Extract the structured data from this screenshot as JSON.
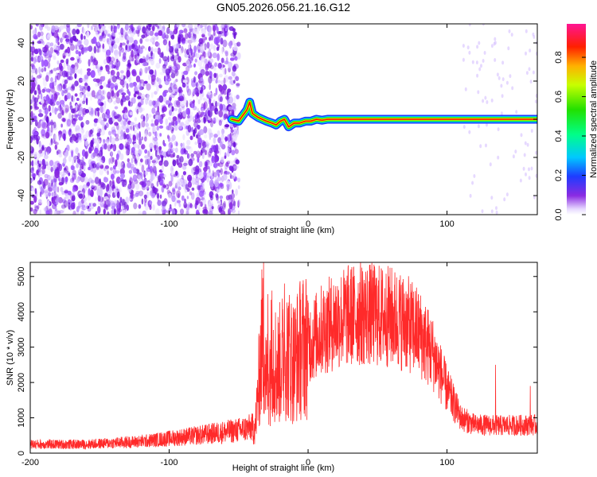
{
  "title": "GN05.2026.056.21.16.G12",
  "chart_data": [
    {
      "type": "heatmap",
      "xlabel": "Height of straight line (km)",
      "ylabel": "Frequency (Hz)",
      "xlim": [
        -200,
        165
      ],
      "ylim": [
        -50,
        50
      ],
      "x_ticks": [
        -200,
        -100,
        0,
        100
      ],
      "x_tick_labels": [
        "-200",
        "-100",
        "0",
        "100"
      ],
      "y_ticks": [
        -40,
        -20,
        0,
        20,
        40
      ],
      "y_tick_labels": [
        "-40",
        "-20",
        "0",
        "20",
        "40"
      ],
      "colorbar": {
        "label": "Normalized spectral amplitude",
        "range": [
          0,
          0.97
        ],
        "ticks": [
          0.0,
          0.2,
          0.4,
          0.6,
          0.8
        ],
        "tick_labels": [
          "0.0",
          "0.2",
          "0.4",
          "0.6",
          "0.8"
        ]
      },
      "noise_region_x": [
        -200,
        -52
      ],
      "signal_start_x": -55,
      "trace": [
        [
          -55,
          0
        ],
        [
          -50,
          -1
        ],
        [
          -47,
          2
        ],
        [
          -44,
          5
        ],
        [
          -42,
          9
        ],
        [
          -40,
          3
        ],
        [
          -36,
          1
        ],
        [
          -33,
          0
        ],
        [
          -30,
          -1
        ],
        [
          -26,
          -2
        ],
        [
          -23,
          -3
        ],
        [
          -20,
          -1
        ],
        [
          -17,
          0
        ],
        [
          -14,
          -4
        ],
        [
          -12,
          -3
        ],
        [
          -10,
          -2
        ],
        [
          -6,
          -2
        ],
        [
          -2,
          -1
        ],
        [
          2,
          -1
        ],
        [
          6,
          0
        ],
        [
          10,
          -0.5
        ],
        [
          14,
          0
        ],
        [
          20,
          0
        ],
        [
          40,
          0
        ],
        [
          60,
          0
        ],
        [
          80,
          0
        ],
        [
          100,
          0
        ],
        [
          120,
          0
        ],
        [
          140,
          0
        ],
        [
          165,
          0
        ]
      ]
    },
    {
      "type": "line",
      "xlabel": "Height of straight line (km)",
      "ylabel": "SNR (10 * v/v)",
      "xlim": [
        -200,
        165
      ],
      "ylim": [
        0,
        5400
      ],
      "x_ticks": [
        -200,
        -100,
        0,
        100
      ],
      "x_tick_labels": [
        "-200",
        "-100",
        "0",
        "100"
      ],
      "y_ticks": [
        0,
        1000,
        2000,
        3000,
        4000,
        5000
      ],
      "y_tick_labels": [
        "0",
        "1000",
        "2000",
        "3000",
        "4000",
        "5000"
      ],
      "series_color": "#ff2a2a",
      "envelope": [
        [
          -200,
          250
        ],
        [
          -160,
          250
        ],
        [
          -120,
          330
        ],
        [
          -80,
          500
        ],
        [
          -50,
          650
        ],
        [
          -38,
          750
        ],
        [
          -36,
          1700
        ],
        [
          -33,
          3300
        ],
        [
          -30,
          2000
        ],
        [
          -26,
          2800
        ],
        [
          -22,
          2400
        ],
        [
          -16,
          2900
        ],
        [
          -10,
          2600
        ],
        [
          -5,
          3000
        ],
        [
          0,
          3100
        ],
        [
          5,
          3300
        ],
        [
          10,
          3500
        ],
        [
          20,
          3750
        ],
        [
          30,
          3900
        ],
        [
          40,
          3950
        ],
        [
          50,
          3900
        ],
        [
          60,
          3850
        ],
        [
          70,
          3700
        ],
        [
          80,
          3400
        ],
        [
          90,
          2800
        ],
        [
          100,
          1800
        ],
        [
          110,
          1000
        ],
        [
          120,
          800
        ],
        [
          140,
          780
        ],
        [
          165,
          800
        ]
      ],
      "spikes": [
        [
          -32,
          5400
        ],
        [
          -29,
          4500
        ],
        [
          -26,
          4600
        ],
        [
          -17,
          4800
        ],
        [
          -12,
          3700
        ],
        [
          40,
          4500
        ],
        [
          60,
          4600
        ],
        [
          135,
          2500
        ],
        [
          160,
          1900
        ]
      ]
    }
  ]
}
